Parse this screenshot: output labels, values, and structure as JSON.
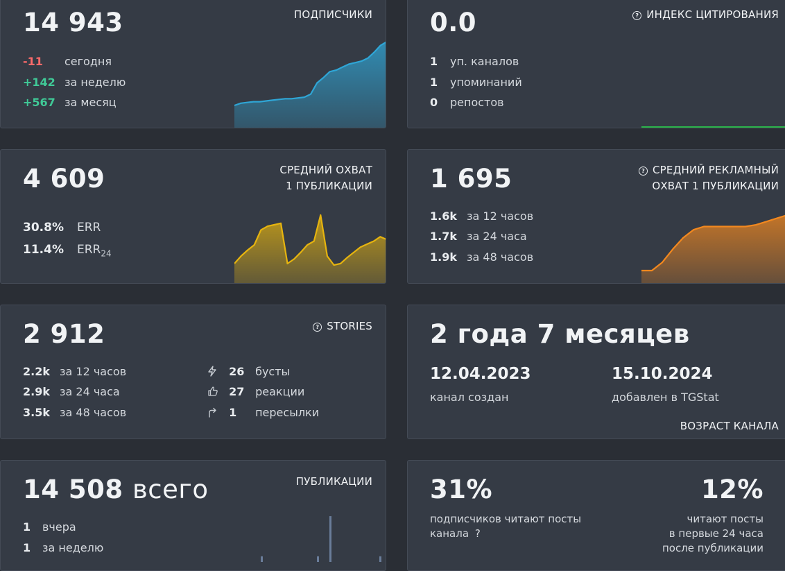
{
  "subscribers": {
    "value": "14 943",
    "title": "ПОДПИСЧИКИ",
    "rows": [
      {
        "value": "-11",
        "label": "сегодня",
        "tone": "neg"
      },
      {
        "value": "+142",
        "label": "за неделю",
        "tone": "pos"
      },
      {
        "value": "+567",
        "label": "за месяц",
        "tone": "pos"
      }
    ],
    "chart_color": "#2fa6d6",
    "chart_data": {
      "type": "area",
      "values": [
        15,
        18,
        19,
        20,
        20,
        21,
        22,
        23,
        24,
        24,
        25,
        26,
        30,
        45,
        52,
        60,
        62,
        66,
        70,
        72,
        74,
        78,
        86,
        95,
        100
      ]
    }
  },
  "citation": {
    "value": "0.0",
    "title": "ИНДЕКС ЦИТИРОВАНИЯ",
    "rows": [
      {
        "value": "1",
        "label": "уп. каналов"
      },
      {
        "value": "1",
        "label": "упоминаний"
      },
      {
        "value": "0",
        "label": "репостов"
      }
    ],
    "chart_color": "#2bb34a",
    "chart_data": {
      "type": "line",
      "values": [
        0,
        0,
        0,
        0,
        0,
        0,
        0,
        0
      ]
    }
  },
  "reach": {
    "value": "4 609",
    "title_line1": "СРЕДНИЙ ОХВАТ",
    "title_line2": "1 ПУБЛИКАЦИИ",
    "rows": [
      {
        "value": "30.8%",
        "label": "ERR"
      },
      {
        "value": "11.4%",
        "label": "ERR",
        "sub": "24"
      }
    ],
    "chart_color": "#e6b40f",
    "chart_data": {
      "type": "area",
      "values": [
        30,
        40,
        48,
        55,
        75,
        80,
        82,
        84,
        30,
        36,
        45,
        55,
        60,
        95,
        40,
        28,
        30,
        38,
        45,
        52,
        56,
        60,
        66,
        62
      ]
    }
  },
  "ad_reach": {
    "value": "1 695",
    "title_line1": "СРЕДНИЙ РЕКЛАМНЫЙ",
    "title_line2": "ОХВАТ 1 ПУБЛИКАЦИИ",
    "rows": [
      {
        "value": "1.6k",
        "label": "за 12 часов"
      },
      {
        "value": "1.7k",
        "label": "за 24 часа"
      },
      {
        "value": "1.9k",
        "label": "за 48 часов"
      }
    ],
    "chart_color": "#f2881f",
    "chart_data": {
      "type": "area",
      "values": [
        1.55,
        1.55,
        1.6,
        1.68,
        1.75,
        1.8,
        1.82,
        1.82,
        1.82,
        1.82,
        1.82,
        1.83,
        1.85,
        1.87,
        1.89
      ]
    }
  },
  "stories": {
    "value": "2 912",
    "title": "STORIES",
    "rows": [
      {
        "value": "2.2k",
        "label": "за 12 часов"
      },
      {
        "value": "2.9k",
        "label": "за 24 часа"
      },
      {
        "value": "3.5k",
        "label": "за 48 часов"
      }
    ],
    "stats": [
      {
        "icon": "lightning-icon",
        "value": "26",
        "label": "бусты"
      },
      {
        "icon": "thumbs-up-icon",
        "value": "27",
        "label": "реакции"
      },
      {
        "icon": "forward-arrow-icon",
        "value": "1",
        "label": "пересылки"
      }
    ]
  },
  "age": {
    "value": "2 года 7 месяцев",
    "created_date": "12.04.2023",
    "created_label": "канал создан",
    "added_date": "15.10.2024",
    "added_label": "добавлен в TGStat",
    "title": "ВОЗРАСТ КАНАЛА"
  },
  "publications": {
    "value": "14 508",
    "value_suffix": "всего",
    "title": "ПУБЛИКАЦИИ",
    "rows": [
      {
        "value": "1",
        "label": "вчера"
      },
      {
        "value": "1",
        "label": "за неделю"
      }
    ],
    "chart_color": "#6a7d9a",
    "chart_data": {
      "type": "bar",
      "values": [
        1,
        0,
        0,
        0,
        0,
        0,
        0,
        0,
        0,
        1,
        0,
        8,
        0,
        0,
        0,
        0,
        0,
        0,
        0,
        1
      ]
    }
  },
  "readers": {
    "left_value": "31%",
    "left_line1": "подписчиков читают посты",
    "left_line2": "канала",
    "right_value": "12%",
    "right_line1": "читают посты",
    "right_line2": "в первые 24 часа",
    "right_line3": "после публикации"
  },
  "help_icon_glyph": "?"
}
